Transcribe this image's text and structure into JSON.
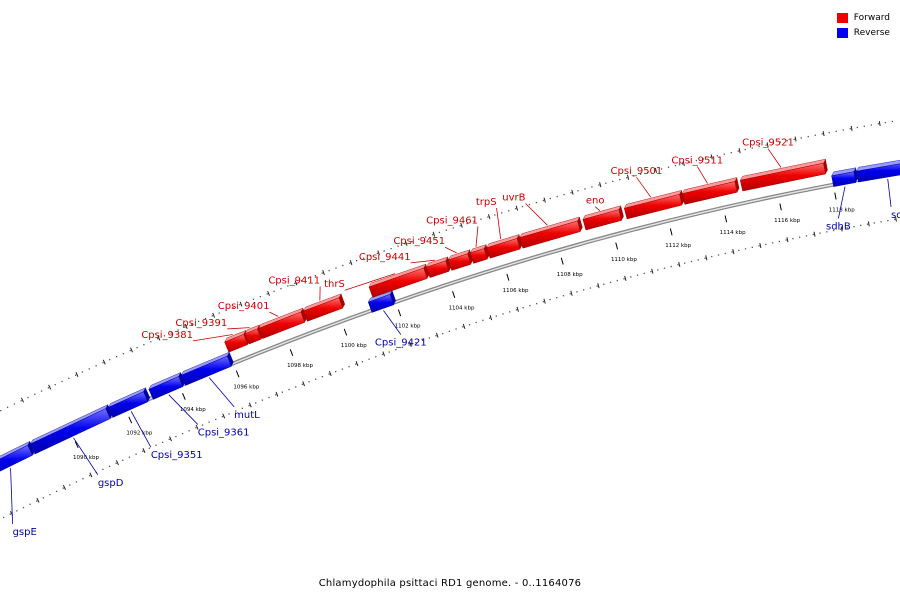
{
  "legend": {
    "forward_label": "Forward",
    "reverse_label": "Reverse",
    "forward_color": "#ee0000",
    "reverse_color": "#0000ee"
  },
  "colors": {
    "forward_label": "#cc0000",
    "reverse_label": "#0000aa",
    "backbone": "#888888"
  },
  "caption": "Chlamydophila psittaci RD1 genome. - 0..1164076",
  "chart_data": {
    "type": "linear-genome-map",
    "scale_unit": "kbp",
    "visible_range_kbp": [
      1087,
      1120
    ],
    "ticks": [
      {
        "label": "1090 kbp"
      },
      {
        "label": "1092 kbp"
      },
      {
        "label": "1094 kbp"
      },
      {
        "label": "1096 kbp"
      },
      {
        "label": "1098 kbp"
      },
      {
        "label": "1100 kbp"
      },
      {
        "label": "1102 kbp"
      },
      {
        "label": "1104 kbp"
      },
      {
        "label": "1106 kbp"
      },
      {
        "label": "1108 kbp"
      },
      {
        "label": "1110 kbp"
      },
      {
        "label": "1112 kbp"
      },
      {
        "label": "1114 kbp"
      },
      {
        "label": "1116 kbp"
      },
      {
        "label": "1118 kbp"
      }
    ],
    "genes": [
      {
        "name": "gspE",
        "strand": "reverse",
        "start_kbp": 1086.8,
        "end_kbp": 1088.5
      },
      {
        "name": "gspD",
        "strand": "reverse",
        "start_kbp": 1088.6,
        "end_kbp": 1091.4
      },
      {
        "name": "Cpsi_9351",
        "strand": "reverse",
        "start_kbp": 1091.5,
        "end_kbp": 1092.8
      },
      {
        "name": "Cpsi_9361",
        "strand": "reverse",
        "start_kbp": 1093.0,
        "end_kbp": 1094.1
      },
      {
        "name": "mutL",
        "strand": "reverse",
        "start_kbp": 1094.2,
        "end_kbp": 1095.9
      },
      {
        "name": "Cpsi_9381",
        "strand": "forward",
        "start_kbp": 1096.0,
        "end_kbp": 1096.7
      },
      {
        "name": "Cpsi_9391",
        "strand": "forward",
        "start_kbp": 1096.75,
        "end_kbp": 1097.2
      },
      {
        "name": "Cpsi_9401",
        "strand": "forward",
        "start_kbp": 1097.25,
        "end_kbp": 1098.8
      },
      {
        "name": "Cpsi_9411",
        "strand": "forward",
        "start_kbp": 1098.9,
        "end_kbp": 1100.2
      },
      {
        "name": "Cpsi_9421",
        "strand": "reverse",
        "start_kbp": 1101.1,
        "end_kbp": 1101.9
      },
      {
        "name": "thrS",
        "strand": "forward",
        "start_kbp": 1101.3,
        "end_kbp": 1103.3
      },
      {
        "name": "Cpsi_9441",
        "strand": "forward",
        "start_kbp": 1103.4,
        "end_kbp": 1104.1
      },
      {
        "name": "Cpsi_9451",
        "strand": "forward",
        "start_kbp": 1104.2,
        "end_kbp": 1104.9
      },
      {
        "name": "Cpsi_9461",
        "strand": "forward",
        "start_kbp": 1105.0,
        "end_kbp": 1105.5
      },
      {
        "name": "trpS",
        "strand": "forward",
        "start_kbp": 1105.6,
        "end_kbp": 1106.7
      },
      {
        "name": "uvrB",
        "strand": "forward",
        "start_kbp": 1106.8,
        "end_kbp": 1108.9
      },
      {
        "name": "eno",
        "strand": "forward",
        "start_kbp": 1109.1,
        "end_kbp": 1110.4
      },
      {
        "name": "Cpsi_9501",
        "strand": "forward",
        "start_kbp": 1110.6,
        "end_kbp": 1112.6
      },
      {
        "name": "Cpsi_9511",
        "strand": "forward",
        "start_kbp": 1112.7,
        "end_kbp": 1114.6
      },
      {
        "name": "Cpsi_9521",
        "strand": "forward",
        "start_kbp": 1114.8,
        "end_kbp": 1117.8
      },
      {
        "name": "sdhB",
        "strand": "reverse",
        "start_kbp": 1118.0,
        "end_kbp": 1118.8
      },
      {
        "name": "sdhA",
        "strand": "reverse",
        "start_kbp": 1118.9,
        "end_kbp": 1121.0
      }
    ]
  }
}
